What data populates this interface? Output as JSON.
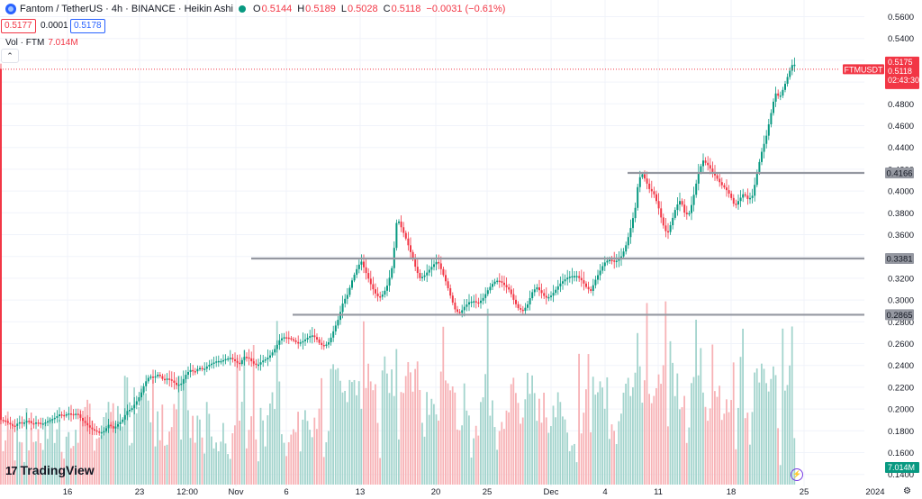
{
  "header": {
    "symbol_title": "Fantom / TetherUS · 4h · BINANCE · Heikin Ashi",
    "open_label": "O",
    "open": "0.5144",
    "high_label": "H",
    "high": "0.5189",
    "low_label": "L",
    "low": "0.5028",
    "close_label": "C",
    "close": "0.5118",
    "change": "−0.0031 (−0.61%)",
    "bid": "0.5177",
    "spread": "0.0001",
    "ask": "0.5178",
    "collapse_glyph": "⌃"
  },
  "volume_legend": {
    "label": "Vol · FTM",
    "value": "7.014M"
  },
  "branding": {
    "logo_mark": "17",
    "logo_text": "TradingView"
  },
  "colors": {
    "up": "#089981",
    "down": "#f23645",
    "up_vol": "#a3d4cd",
    "down_vol": "#f7b2b6",
    "level": "#9598a1",
    "grid": "#f0f3fa",
    "text": "#131722",
    "accent": "#2962ff"
  },
  "chart_data": {
    "type": "candlestick",
    "symbol": "FTMUSDT",
    "timeframe": "4h",
    "style": "Heikin Ashi",
    "ylim": [
      0.14,
      0.57
    ],
    "y_ticks": [
      "0.5600",
      "0.5400",
      "0.5200",
      "0.5000",
      "0.4800",
      "0.4600",
      "0.4400",
      "0.4200",
      "0.4000",
      "0.3800",
      "0.3600",
      "0.3400",
      "0.3200",
      "0.3000",
      "0.2800",
      "0.2600",
      "0.2400",
      "0.2200",
      "0.2000",
      "0.1800",
      "0.1600",
      "0.1400"
    ],
    "x_ticks": [
      "16",
      "23",
      "12:00",
      "Nov",
      "6",
      "13",
      "20",
      "25",
      "Dec",
      "4",
      "11",
      "18",
      "25",
      "2024"
    ],
    "price_path": [
      [
        0,
        0.19
      ],
      [
        5,
        0.189
      ],
      [
        10,
        0.186
      ],
      [
        15,
        0.184
      ],
      [
        20,
        0.188
      ],
      [
        25,
        0.187
      ],
      [
        30,
        0.19
      ],
      [
        35,
        0.186
      ],
      [
        40,
        0.188
      ],
      [
        45,
        0.186
      ],
      [
        50,
        0.188
      ],
      [
        55,
        0.19
      ],
      [
        60,
        0.192
      ],
      [
        65,
        0.195
      ],
      [
        70,
        0.194
      ],
      [
        75,
        0.196
      ],
      [
        80,
        0.195
      ],
      [
        85,
        0.196
      ],
      [
        90,
        0.19
      ],
      [
        95,
        0.186
      ],
      [
        100,
        0.182
      ],
      [
        105,
        0.18
      ],
      [
        110,
        0.178
      ],
      [
        115,
        0.18
      ],
      [
        120,
        0.186
      ],
      [
        125,
        0.182
      ],
      [
        130,
        0.186
      ],
      [
        135,
        0.19
      ],
      [
        140,
        0.198
      ],
      [
        145,
        0.2
      ],
      [
        150,
        0.206
      ],
      [
        155,
        0.213
      ],
      [
        160,
        0.224
      ],
      [
        165,
        0.23
      ],
      [
        170,
        0.229
      ],
      [
        175,
        0.232
      ],
      [
        180,
        0.227
      ],
      [
        185,
        0.228
      ],
      [
        190,
        0.226
      ],
      [
        195,
        0.222
      ],
      [
        200,
        0.223
      ],
      [
        205,
        0.231
      ],
      [
        210,
        0.236
      ],
      [
        215,
        0.234
      ],
      [
        220,
        0.238
      ],
      [
        225,
        0.236
      ],
      [
        230,
        0.24
      ],
      [
        235,
        0.242
      ],
      [
        240,
        0.244
      ],
      [
        245,
        0.244
      ],
      [
        250,
        0.246
      ],
      [
        255,
        0.247
      ],
      [
        260,
        0.244
      ],
      [
        265,
        0.241
      ],
      [
        270,
        0.248
      ],
      [
        275,
        0.247
      ],
      [
        280,
        0.242
      ],
      [
        285,
        0.24
      ],
      [
        290,
        0.244
      ],
      [
        295,
        0.246
      ],
      [
        300,
        0.25
      ],
      [
        305,
        0.256
      ],
      [
        310,
        0.264
      ],
      [
        315,
        0.266
      ],
      [
        320,
        0.265
      ],
      [
        325,
        0.263
      ],
      [
        330,
        0.26
      ],
      [
        335,
        0.262
      ],
      [
        340,
        0.265
      ],
      [
        345,
        0.268
      ],
      [
        350,
        0.265
      ],
      [
        355,
        0.259
      ],
      [
        360,
        0.258
      ],
      [
        365,
        0.262
      ],
      [
        370,
        0.273
      ],
      [
        375,
        0.283
      ],
      [
        380,
        0.298
      ],
      [
        385,
        0.305
      ],
      [
        390,
        0.318
      ],
      [
        395,
        0.328
      ],
      [
        400,
        0.336
      ],
      [
        405,
        0.326
      ],
      [
        410,
        0.316
      ],
      [
        415,
        0.307
      ],
      [
        420,
        0.302
      ],
      [
        425,
        0.306
      ],
      [
        430,
        0.315
      ],
      [
        435,
        0.332
      ],
      [
        440,
        0.376
      ],
      [
        445,
        0.366
      ],
      [
        450,
        0.356
      ],
      [
        455,
        0.344
      ],
      [
        460,
        0.331
      ],
      [
        465,
        0.32
      ],
      [
        470,
        0.322
      ],
      [
        475,
        0.327
      ],
      [
        480,
        0.332
      ],
      [
        485,
        0.336
      ],
      [
        490,
        0.326
      ],
      [
        495,
        0.315
      ],
      [
        500,
        0.302
      ],
      [
        505,
        0.29
      ],
      [
        510,
        0.288
      ],
      [
        515,
        0.294
      ],
      [
        520,
        0.298
      ],
      [
        525,
        0.299
      ],
      [
        530,
        0.297
      ],
      [
        535,
        0.301
      ],
      [
        540,
        0.308
      ],
      [
        545,
        0.314
      ],
      [
        550,
        0.318
      ],
      [
        555,
        0.317
      ],
      [
        560,
        0.313
      ],
      [
        565,
        0.309
      ],
      [
        570,
        0.299
      ],
      [
        575,
        0.292
      ],
      [
        580,
        0.29
      ],
      [
        585,
        0.296
      ],
      [
        590,
        0.307
      ],
      [
        595,
        0.312
      ],
      [
        600,
        0.307
      ],
      [
        605,
        0.302
      ],
      [
        610,
        0.303
      ],
      [
        615,
        0.308
      ],
      [
        620,
        0.314
      ],
      [
        625,
        0.318
      ],
      [
        630,
        0.321
      ],
      [
        635,
        0.322
      ],
      [
        640,
        0.322
      ],
      [
        645,
        0.318
      ],
      [
        650,
        0.312
      ],
      [
        655,
        0.308
      ],
      [
        660,
        0.318
      ],
      [
        665,
        0.326
      ],
      [
        670,
        0.334
      ],
      [
        675,
        0.337
      ],
      [
        680,
        0.336
      ],
      [
        685,
        0.336
      ],
      [
        690,
        0.341
      ],
      [
        695,
        0.352
      ],
      [
        700,
        0.368
      ],
      [
        705,
        0.386
      ],
      [
        708,
        0.41
      ],
      [
        712,
        0.416
      ],
      [
        716,
        0.41
      ],
      [
        720,
        0.402
      ],
      [
        725,
        0.398
      ],
      [
        730,
        0.386
      ],
      [
        735,
        0.37
      ],
      [
        740,
        0.36
      ],
      [
        745,
        0.372
      ],
      [
        750,
        0.386
      ],
      [
        755,
        0.392
      ],
      [
        760,
        0.378
      ],
      [
        765,
        0.38
      ],
      [
        770,
        0.398
      ],
      [
        775,
        0.418
      ],
      [
        780,
        0.428
      ],
      [
        785,
        0.424
      ],
      [
        790,
        0.418
      ],
      [
        795,
        0.412
      ],
      [
        800,
        0.406
      ],
      [
        805,
        0.402
      ],
      [
        810,
        0.396
      ],
      [
        815,
        0.386
      ],
      [
        820,
        0.392
      ],
      [
        825,
        0.398
      ],
      [
        830,
        0.392
      ],
      [
        835,
        0.396
      ],
      [
        840,
        0.418
      ],
      [
        845,
        0.436
      ],
      [
        850,
        0.45
      ],
      [
        855,
        0.47
      ],
      [
        860,
        0.49
      ],
      [
        865,
        0.486
      ],
      [
        870,
        0.496
      ],
      [
        875,
        0.508
      ],
      [
        880,
        0.518
      ],
      [
        884,
        0.512
      ]
    ],
    "levels": [
      {
        "label": "0.4166",
        "value": 0.4166,
        "x_from": 697
      },
      {
        "label": "0.3381",
        "value": 0.3381,
        "x_from": 279
      },
      {
        "label": "0.2865",
        "value": 0.2865,
        "x_from": 325
      }
    ],
    "last_price": {
      "symbol_tag": "FTMUSDT",
      "price": "0.5118",
      "countdown": "02:43:30",
      "marker": "0.5175",
      "value": 0.5118
    },
    "volume": {
      "last": "7.014M"
    }
  }
}
